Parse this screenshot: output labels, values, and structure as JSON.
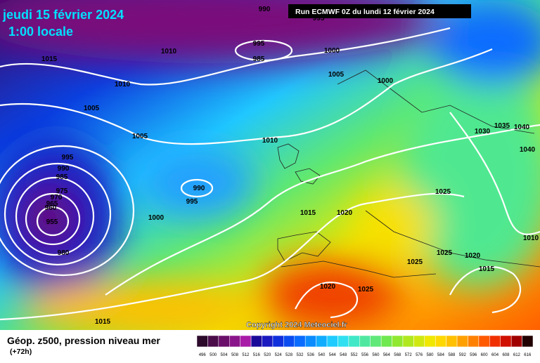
{
  "header": {
    "date": "jeudi 15 février 2024",
    "time": "1:00 locale"
  },
  "run": "Run ECMWF 0Z du lundi 12 février 2024",
  "copyright": "Copyright 2024 Meteociel.fr",
  "isobar_labels": [
    990,
    995,
    1015,
    1010,
    995,
    985,
    1000,
    1010,
    1005,
    1005,
    1000,
    1005,
    1010,
    1030,
    1035,
    1040,
    1040,
    995,
    990,
    985,
    975,
    970,
    965,
    960,
    955,
    990,
    995,
    1000,
    980,
    1015,
    1020,
    1025,
    1010,
    1025,
    1020,
    1025,
    1015,
    1020,
    1025,
    1015
  ],
  "legend": {
    "title": "Géop. z500, pression niveau mer",
    "lead": "(+72h)",
    "values": [
      496,
      500,
      504,
      508,
      512,
      516,
      520,
      524,
      528,
      532,
      536,
      540,
      544,
      548,
      552,
      556,
      560,
      564,
      568,
      572,
      576,
      580,
      584,
      588,
      592,
      596,
      600,
      604,
      608,
      612,
      616
    ],
    "colors": [
      "#2b0a2b",
      "#4a0d4a",
      "#6a0f6a",
      "#8a158a",
      "#a81ca8",
      "#1a0a9a",
      "#1a1ac0",
      "#1030dc",
      "#0a4cf0",
      "#0a6cff",
      "#0a8cff",
      "#10acff",
      "#20ccff",
      "#30e0f0",
      "#40e8c8",
      "#50e8a0",
      "#60e878",
      "#70e850",
      "#90e830",
      "#b0e820",
      "#d0e810",
      "#f0e800",
      "#ffd800",
      "#ffc000",
      "#ffa000",
      "#ff8000",
      "#ff5a00",
      "#f03000",
      "#d01000",
      "#a00000",
      "#200000"
    ]
  }
}
